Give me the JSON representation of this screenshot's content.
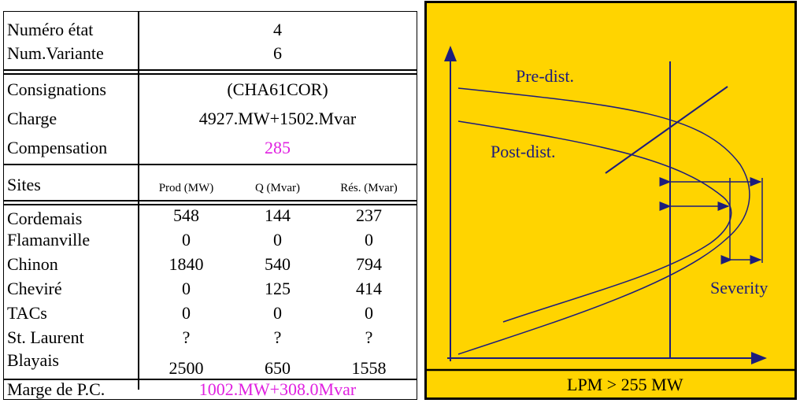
{
  "table": {
    "numero_etat_label": "Numéro état",
    "numero_etat_value": "4",
    "num_variante_label": "Num.Variante",
    "num_variante_value": "6",
    "consignations_label": "Consignations",
    "consignations_value": "(CHA61COR)",
    "charge_label": "Charge",
    "charge_value": "4927.MW+1502.Mvar",
    "compensation_label": "Compensation",
    "compensation_value": "285",
    "sites_header": "Sites",
    "col_prod": "Prod (MW)",
    "col_q": "Q (Mvar)",
    "col_res": "Rés. (Mvar)",
    "sites": [
      {
        "name": "Cordemais",
        "prod": "548",
        "q": "144",
        "res": "237"
      },
      {
        "name": "Flamanville",
        "prod": "0",
        "q": "0",
        "res": "0"
      },
      {
        "name": "Chinon",
        "prod": "1840",
        "q": "540",
        "res": "794"
      },
      {
        "name": "Cheviré",
        "prod": "0",
        "q": "125",
        "res": "414"
      },
      {
        "name": "TACs",
        "prod": "0",
        "q": "0",
        "res": "0"
      },
      {
        "name": "St. Laurent",
        "prod": "?",
        "q": "?",
        "res": "?"
      },
      {
        "name": "Blayais",
        "prod": "2500",
        "q": "650",
        "res": "1558"
      }
    ],
    "marge_label": "Marge de P.C.",
    "marge_value": "1002.MW+308.0Mvar"
  },
  "figure": {
    "pre_dist_label": "Pre-dist.",
    "post_dist_label": "Post-dist.",
    "severity_label": "Severity",
    "xaxis_label": "LPM > 255 MW",
    "background_color": "#ffd400",
    "line_color": "#1c1c7c"
  }
}
